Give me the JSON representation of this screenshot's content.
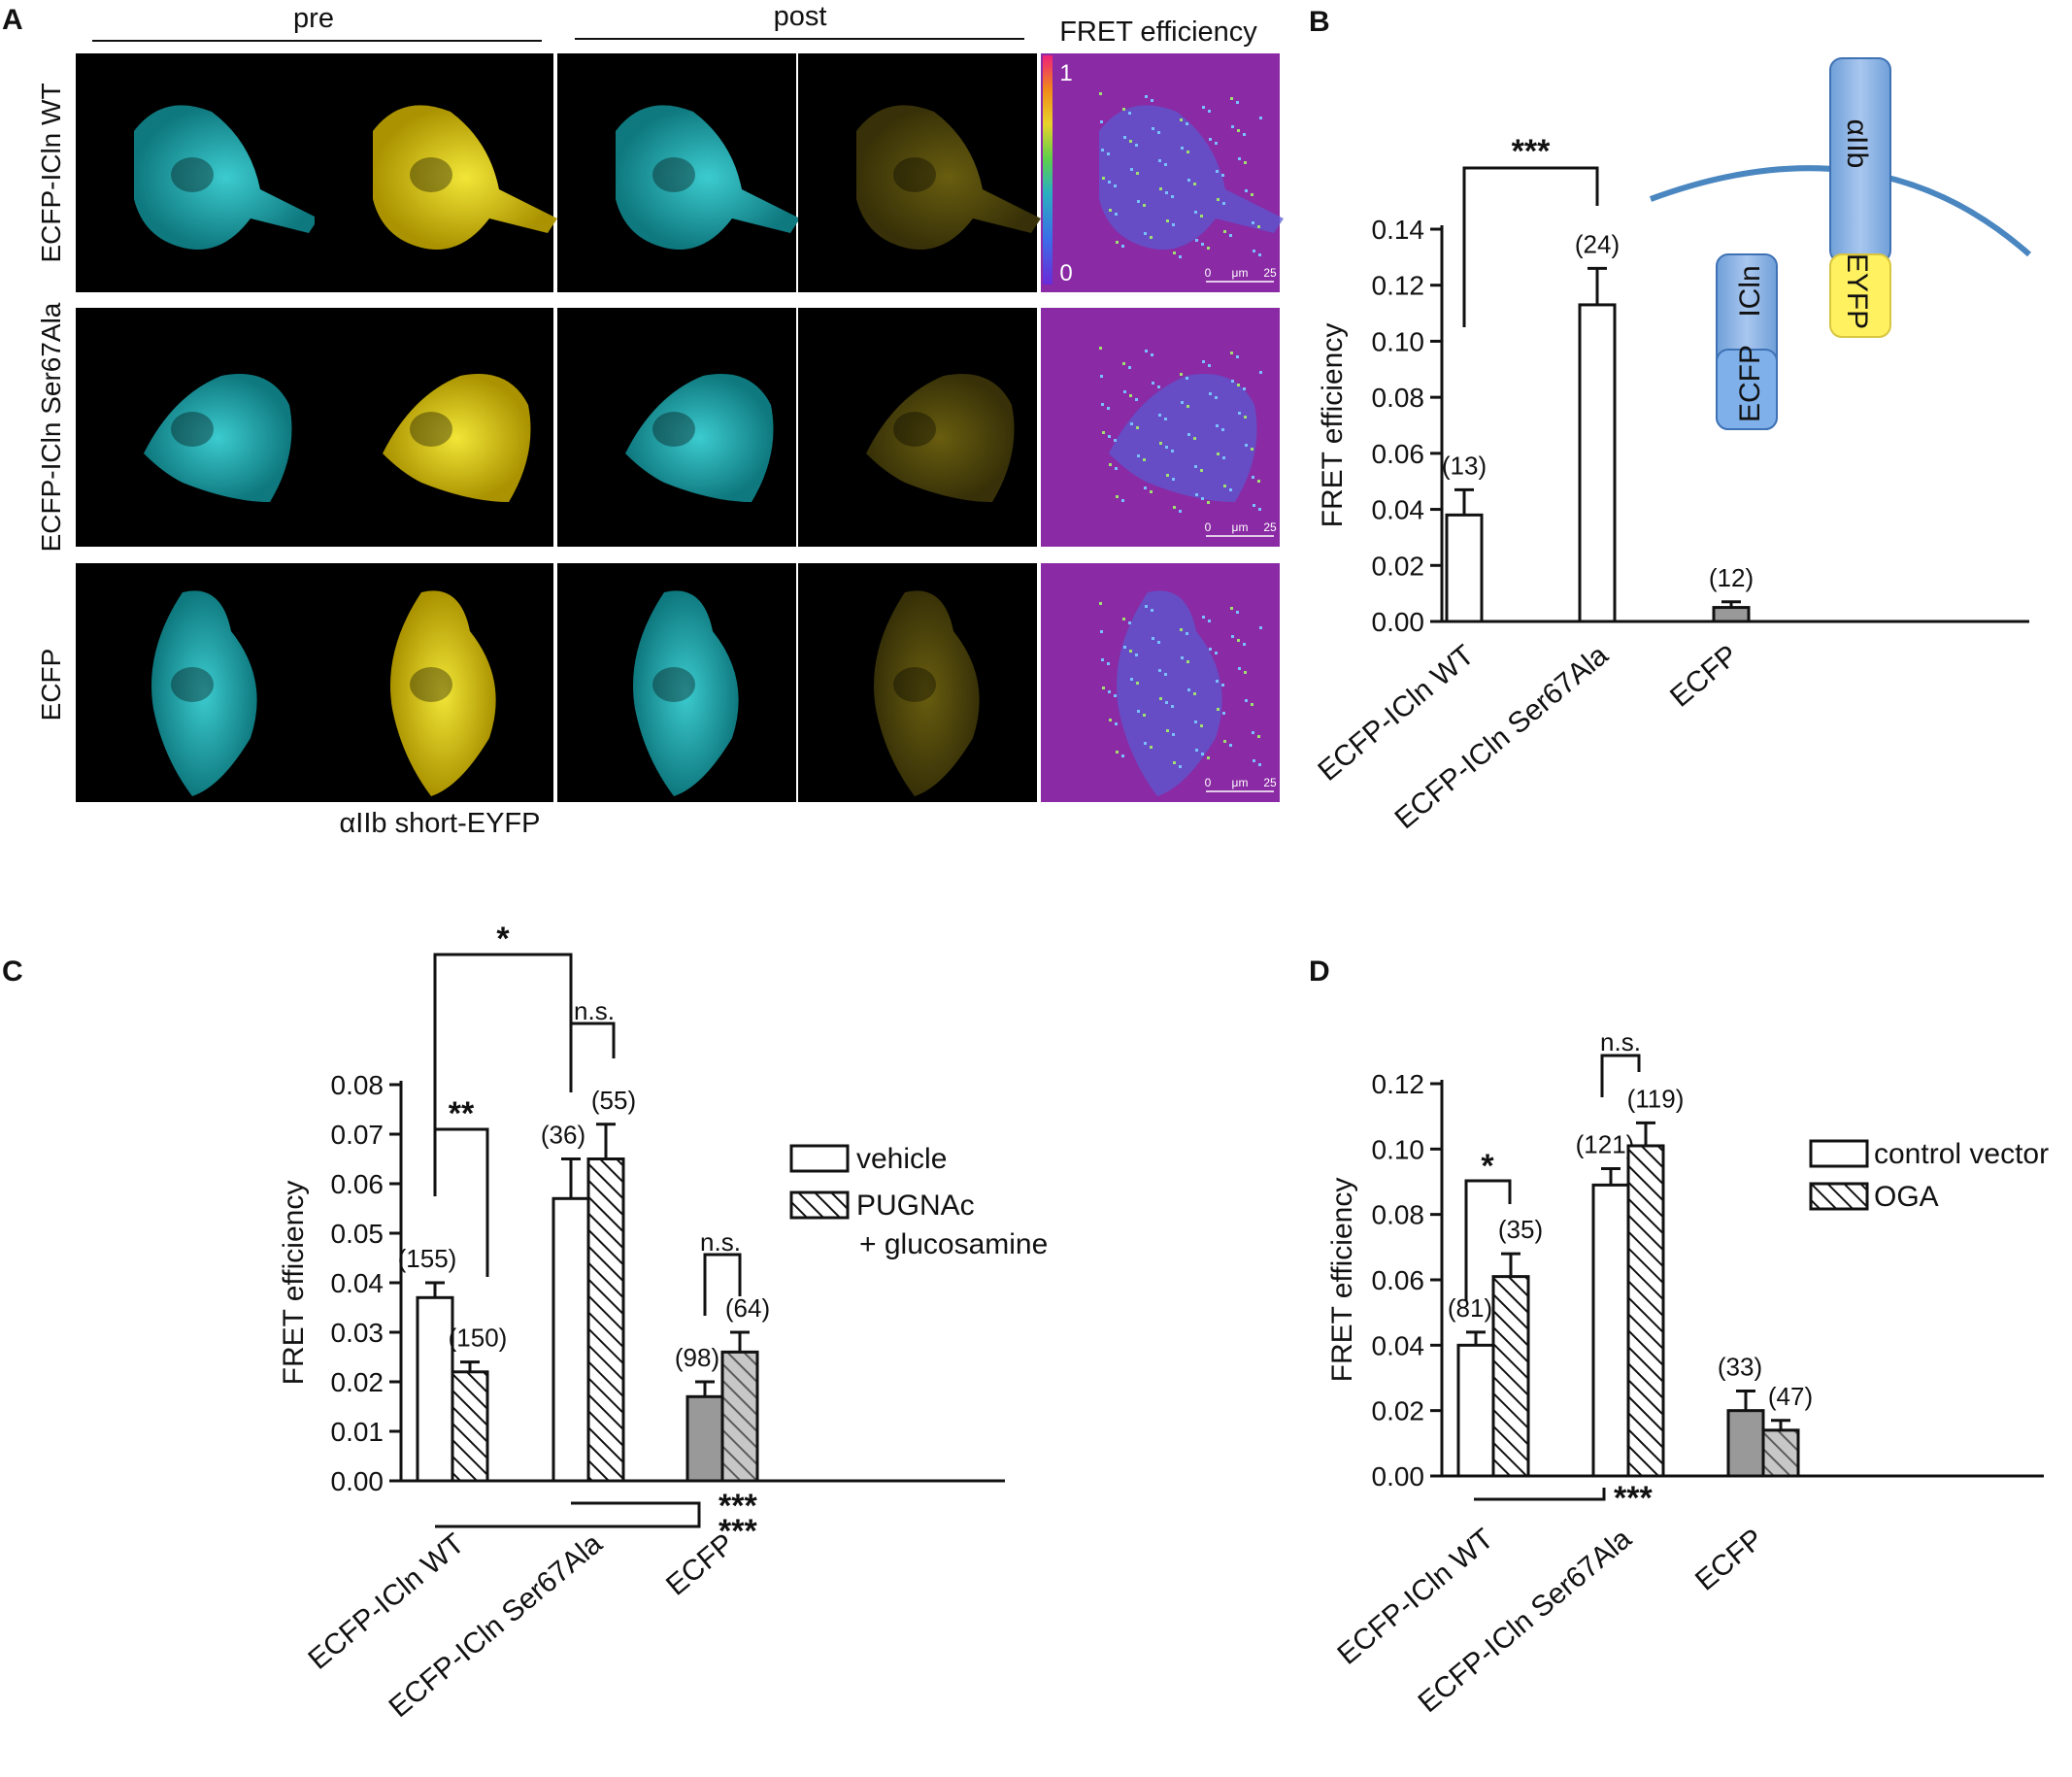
{
  "panel_labels": [
    "A",
    "B",
    "C",
    "D"
  ],
  "panelA": {
    "headers": {
      "pre": "pre",
      "post": "post",
      "fret": "FRET efficiency"
    },
    "rows": [
      "ECFP-ICln WT",
      "ECFP-ICln Ser67Ala",
      "ECFP"
    ],
    "bottom_label": "αIIb short-EYFP",
    "colorbar": {
      "max": "1",
      "min": "0"
    },
    "scalebar": {
      "zero": "0",
      "unit": "μm",
      "value": "25"
    },
    "colors": {
      "cyan": "#1fb3b8",
      "yellow": "#d8c400",
      "fret_bg": "#8a2aa4"
    }
  },
  "schematic": {
    "integrin": "αIIb",
    "eyfp": "EYFP",
    "ecfp": "ECFP",
    "icln": "ICln"
  },
  "chart_data": [
    {
      "id": "B",
      "type": "bar",
      "ylabel": "FRET efficiency",
      "ylim": [
        0,
        0.14
      ],
      "yticks": [
        "0.00",
        "0.02",
        "0.04",
        "0.06",
        "0.08",
        "0.10",
        "0.12",
        "0.14"
      ],
      "categories": [
        "ECFP-ICln WT",
        "ECFP-ICln Ser67Ala",
        "ECFP"
      ],
      "values": [
        0.038,
        0.113,
        0.005
      ],
      "errors": [
        0.009,
        0.013,
        0.002
      ],
      "n": [
        "(13)",
        "(24)",
        "(12)"
      ],
      "fills": [
        "#ffffff",
        "#ffffff",
        "#999999"
      ],
      "significance": [
        {
          "label": "***",
          "between": [
            "ECFP-ICln WT",
            "ECFP-ICln Ser67Ala"
          ]
        }
      ]
    },
    {
      "id": "C",
      "type": "bar",
      "ylabel": "FRET efficiency",
      "ylim": [
        0,
        0.08
      ],
      "yticks": [
        "0.00",
        "0.01",
        "0.02",
        "0.03",
        "0.04",
        "0.05",
        "0.06",
        "0.07",
        "0.08"
      ],
      "categories": [
        "ECFP-ICln WT",
        "ECFP-ICln Ser67Ala",
        "ECFP"
      ],
      "series": [
        {
          "name": "vehicle",
          "values": [
            0.037,
            0.057,
            0.017
          ],
          "errors": [
            0.003,
            0.008,
            0.003
          ],
          "n": [
            "(155)",
            "(36)",
            "(98)"
          ]
        },
        {
          "name": "PUGNAc",
          "values": [
            0.022,
            0.065,
            0.026
          ],
          "errors": [
            0.002,
            0.007,
            0.004
          ],
          "n": [
            "(150)",
            "(55)",
            "(64)"
          ]
        }
      ],
      "legend": {
        "vehicle": "vehicle",
        "treated": "PUGNAc",
        "treated2": "+ glucosamine"
      },
      "significance": {
        "star1": "*",
        "star2": "**",
        "ns": "n.s.",
        "star3": "***"
      }
    },
    {
      "id": "D",
      "type": "bar",
      "ylabel": "FRET efficiency",
      "ylim": [
        0,
        0.12
      ],
      "yticks": [
        "0.00",
        "0.02",
        "0.04",
        "0.06",
        "0.08",
        "0.10",
        "0.12"
      ],
      "categories": [
        "ECFP-ICln WT",
        "ECFP-ICln Ser67Ala",
        "ECFP"
      ],
      "series": [
        {
          "name": "control vector",
          "values": [
            0.04,
            0.089,
            0.02
          ],
          "errors": [
            0.004,
            0.005,
            0.006
          ],
          "n": [
            "(81)",
            "(121)",
            "(33)"
          ]
        },
        {
          "name": "OGA",
          "values": [
            0.061,
            0.101,
            0.014
          ],
          "errors": [
            0.007,
            0.007,
            0.003
          ],
          "n": [
            "(35)",
            "(119)",
            "(47)"
          ]
        }
      ],
      "significance": {
        "star": "*",
        "ns": "n.s.",
        "star3": "***"
      }
    }
  ]
}
